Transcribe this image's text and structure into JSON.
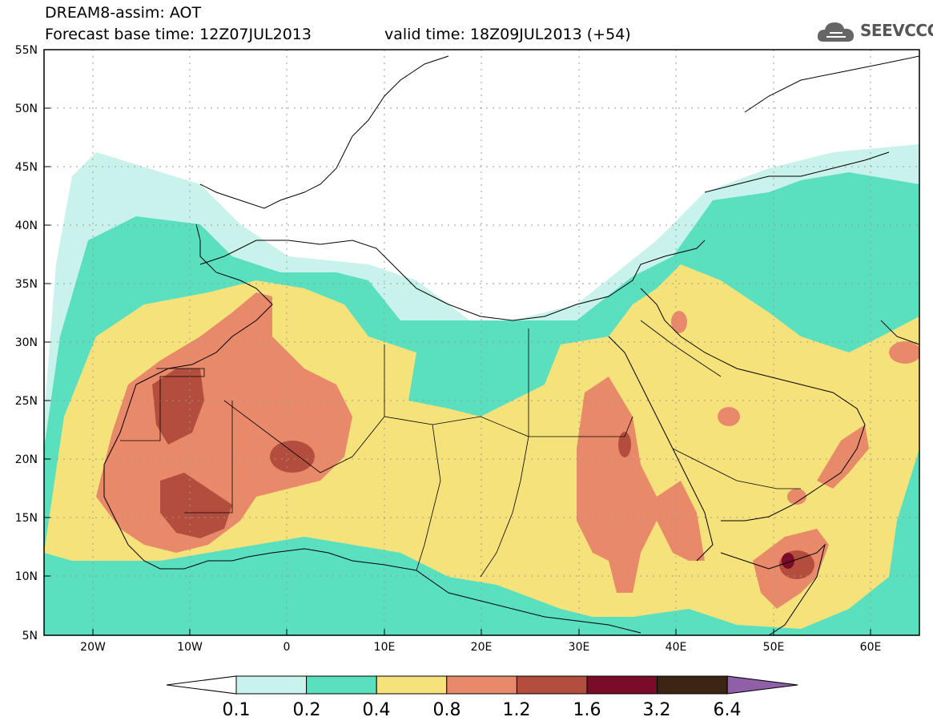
{
  "title": {
    "line1": "DREAM8-assim: AOT",
    "line2": "Forecast base time: 12Z07JUL2013",
    "valid": "valid time: 18Z09JUL2013 (+54)"
  },
  "logo": {
    "name": "cloud-icon",
    "text": "SEEVCCC"
  },
  "map": {
    "lat_labels": [
      "55N",
      "50N",
      "45N",
      "40N",
      "35N",
      "30N",
      "25N",
      "20N",
      "15N",
      "10N",
      "5N"
    ],
    "lon_labels": [
      "20W",
      "10W",
      "0",
      "10E",
      "20E",
      "30E",
      "40E",
      "50E",
      "60E"
    ]
  },
  "colorbar": {
    "levels": [
      "0.1",
      "0.2",
      "0.4",
      "0.8",
      "1.2",
      "1.6",
      "3.2",
      "6.4"
    ],
    "colors": [
      "#c9f2ec",
      "#5be0bf",
      "#f5e27a",
      "#e8896a",
      "#b34e3f",
      "#7a0c2a",
      "#3d2516"
    ],
    "under_color": "#ffffff",
    "over_color": "#8f5fa8"
  },
  "palette": {
    "land": "#ffffff",
    "border": "#000000",
    "grid": "#9a9a9a"
  }
}
